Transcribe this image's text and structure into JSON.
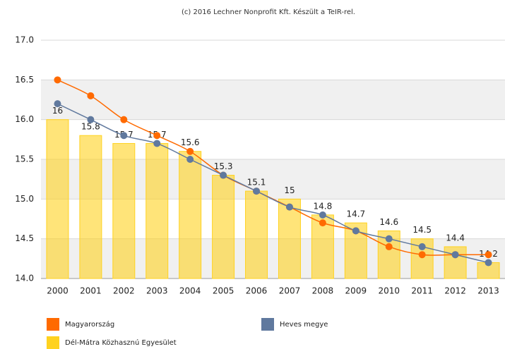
{
  "chart_data": {
    "type": "bar",
    "title": "(c) 2016 Lechner Nonprofit Kft. Készült a TeIR-rel.",
    "categories": [
      "2000",
      "2001",
      "2002",
      "2003",
      "2004",
      "2005",
      "2006",
      "2007",
      "2008",
      "2009",
      "2010",
      "2011",
      "2012",
      "2013"
    ],
    "series": [
      {
        "name": "Dél-Mátra Közhasznú Egyesület",
        "type": "bar",
        "color": "#ffd21f",
        "values": [
          16,
          15.8,
          15.7,
          15.7,
          15.6,
          15.3,
          15.1,
          15,
          14.8,
          14.7,
          14.6,
          14.5,
          14.4,
          14.2
        ]
      },
      {
        "name": "Magyarország",
        "type": "line",
        "color": "#ff6a00",
        "values": [
          16.5,
          16.3,
          16.0,
          15.8,
          15.6,
          15.3,
          15.1,
          14.9,
          14.7,
          14.6,
          14.4,
          14.3,
          14.3,
          14.3
        ]
      },
      {
        "name": "Heves megye",
        "type": "line",
        "color": "#60799e",
        "values": [
          16.2,
          16.0,
          15.8,
          15.7,
          15.5,
          15.3,
          15.1,
          14.9,
          14.8,
          14.6,
          14.5,
          14.4,
          14.3,
          14.2
        ]
      }
    ],
    "ylim": [
      14,
      17
    ],
    "yticks": [
      {
        "value": 14,
        "label": "14.0"
      },
      14.5,
      {
        "value": 15,
        "label": "15.0"
      },
      15.5,
      {
        "value": 16,
        "label": "16.0"
      },
      16.5,
      {
        "value": 17,
        "label": "17.0"
      }
    ],
    "grid": true
  }
}
